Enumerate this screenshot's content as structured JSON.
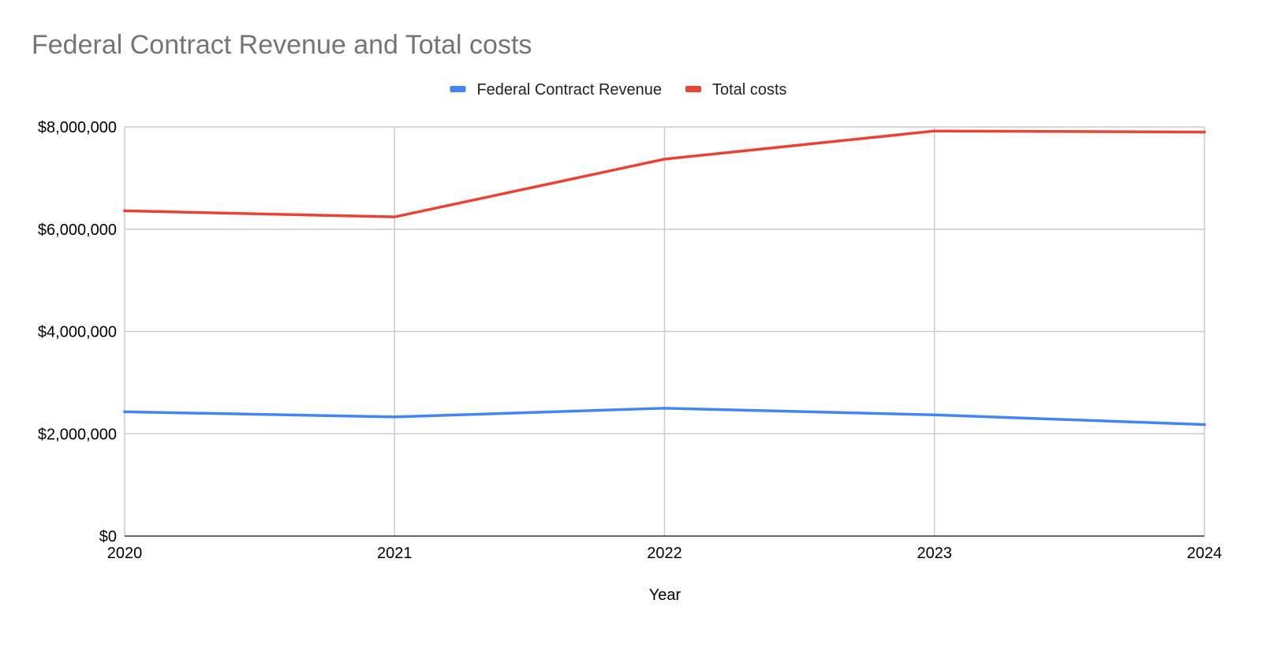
{
  "chart_data": {
    "type": "line",
    "title": "Federal Contract Revenue and Total costs",
    "xlabel": "Year",
    "ylabel": "",
    "x": [
      "2020",
      "2021",
      "2022",
      "2023",
      "2024"
    ],
    "ylim": [
      0,
      8000000
    ],
    "y_ticks": [
      {
        "value": 0,
        "label": "$0"
      },
      {
        "value": 2000000,
        "label": "$2,000,000"
      },
      {
        "value": 4000000,
        "label": "$4,000,000"
      },
      {
        "value": 6000000,
        "label": "$6,000,000"
      },
      {
        "value": 8000000,
        "label": "$8,000,000"
      }
    ],
    "grid": true,
    "legend_position": "top-center",
    "series": [
      {
        "name": "Federal Contract Revenue",
        "color": "#4285F4",
        "values": [
          2430000,
          2330000,
          2500000,
          2370000,
          2180000
        ]
      },
      {
        "name": "Total costs",
        "color": "#EA4335",
        "values": [
          6360000,
          6240000,
          7370000,
          7920000,
          7900000
        ]
      }
    ]
  }
}
